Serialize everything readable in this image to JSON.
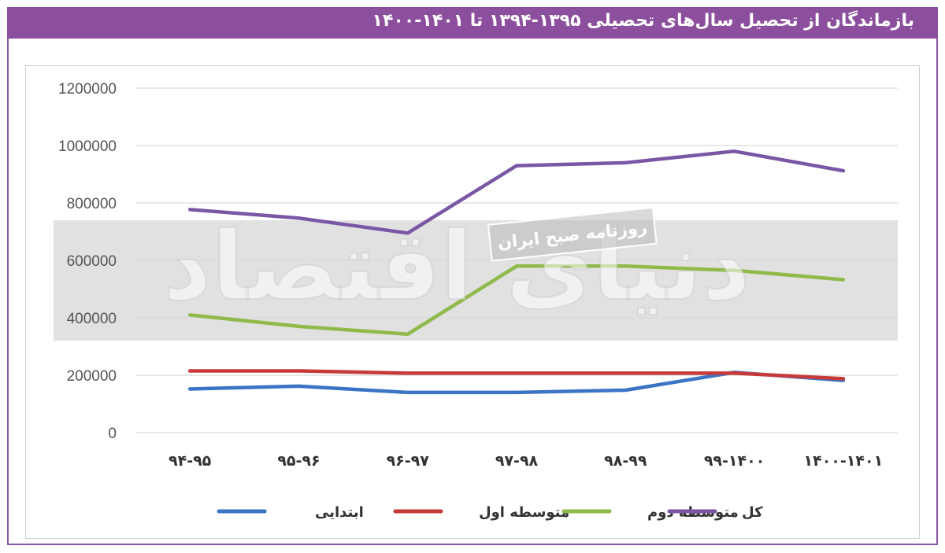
{
  "title": "بازماندگان از تحصیل سال‌های تحصیلی ۱۳۹۵-۱۳۹۴ تا ۱۴۰۱-۱۴۰۰",
  "watermark": {
    "main": "دنیای اقتصاد",
    "stamp": "روزنامه صبح ایران"
  },
  "colors": {
    "title_bg": "#8c4f9d",
    "grid": "#d9d9d9",
    "band": "#dcdcdc"
  },
  "chart_data": {
    "type": "line",
    "title": "بازماندگان از تحصیل سال‌های تحصیلی ۱۳۹۵-۱۳۹۴ تا ۱۴۰۱-۱۴۰۰",
    "categories": [
      "۹۴-۹۵",
      "۹۵-۹۶",
      "۹۶-۹۷",
      "۹۷-۹۸",
      "۹۸-۹۹",
      "۹۹-۱۴۰۰",
      "۱۴۰۰-۱۴۰۱"
    ],
    "y_ticks": [
      "0",
      "200000",
      "400000",
      "600000",
      "800000",
      "1000000",
      "1200000"
    ],
    "ylim": [
      0,
      1200000
    ],
    "grid": true,
    "legend_position": "bottom",
    "series": [
      {
        "name": "ابتدایی",
        "color": "#3b74c4",
        "values": [
          152000,
          162000,
          140000,
          140000,
          148000,
          210000,
          182000
        ]
      },
      {
        "name": "متوسطه اول",
        "color": "#c83a3a",
        "values": [
          215000,
          215000,
          207000,
          207000,
          207000,
          207000,
          188000
        ]
      },
      {
        "name": "متوسطه دوم",
        "color": "#8fba4a",
        "values": [
          410000,
          370000,
          343000,
          580000,
          580000,
          565000,
          533000
        ]
      },
      {
        "name": "کل",
        "color": "#7a57a5",
        "values": [
          777000,
          747000,
          695000,
          930000,
          940000,
          980000,
          912000
        ]
      }
    ]
  }
}
